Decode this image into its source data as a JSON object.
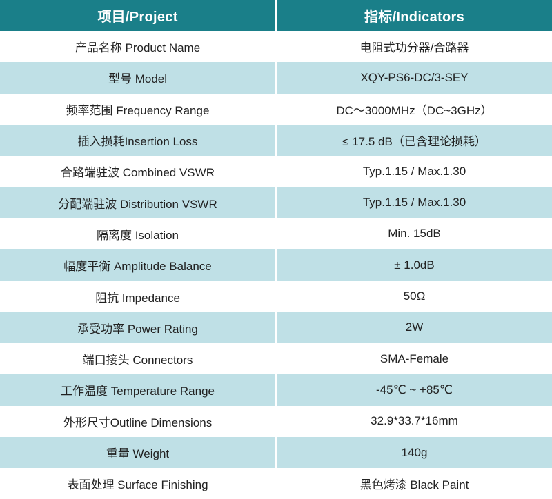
{
  "header": {
    "col_project": "项目/Project",
    "col_indicators": "指标/Indicators"
  },
  "rows": [
    {
      "param": "产品名称 Product Name",
      "value": "电阻式功分器/合路器"
    },
    {
      "param": "型号 Model",
      "value": "XQY-PS6-DC/3-SEY"
    },
    {
      "param": "频率范围 Frequency Range",
      "value": "DC～3000MHz（DC~3GHz）"
    },
    {
      "param": "插入损耗Insertion Loss",
      "value": "≤ 17.5 dB（已含理论损耗）"
    },
    {
      "param": "合路端驻波 Combined VSWR",
      "value": "Typ.1.15 / Max.1.30"
    },
    {
      "param": "分配端驻波 Distribution VSWR",
      "value": "Typ.1.15 / Max.1.30"
    },
    {
      "param": "隔离度 Isolation",
      "value": "Min. 15dB"
    },
    {
      "param": "幅度平衡 Amplitude Balance",
      "value": "± 1.0dB"
    },
    {
      "param": "阻抗 Impedance",
      "value": "50Ω"
    },
    {
      "param": "承受功率 Power Rating",
      "value": "2W"
    },
    {
      "param": "端口接头 Connectors",
      "value": "SMA-Female"
    },
    {
      "param": "工作温度 Temperature Range",
      "value": "-45℃ ~ +85℃"
    },
    {
      "param": "外形尺寸Outline Dimensions",
      "value": "32.9*33.7*16mm"
    },
    {
      "param": "重量 Weight",
      "value": "140g"
    },
    {
      "param": "表面处理 Surface Finishing",
      "value": "黑色烤漆 Black Paint"
    }
  ],
  "colors": {
    "header_bg": "#1a7f89",
    "stripe_bg": "#bfe0e6"
  }
}
